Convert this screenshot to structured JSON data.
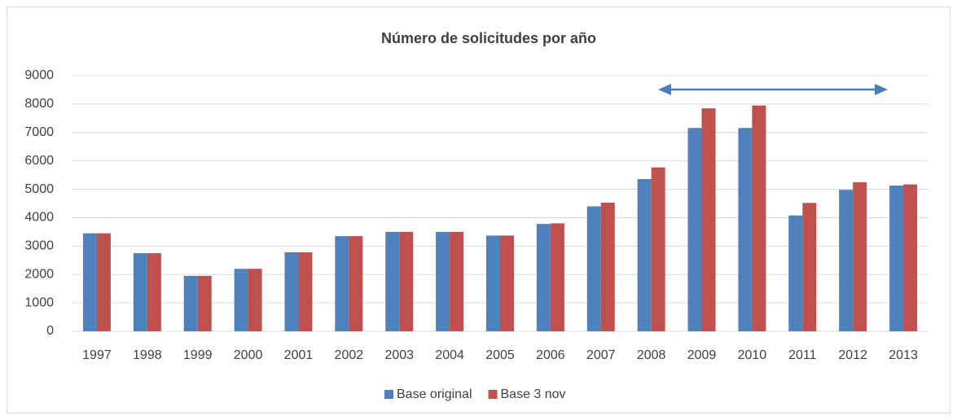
{
  "chart_data": {
    "type": "bar",
    "title": "Número de solicitudes por año",
    "categories": [
      "1997",
      "1998",
      "1999",
      "2000",
      "2001",
      "2002",
      "2003",
      "2004",
      "2005",
      "2006",
      "2007",
      "2008",
      "2009",
      "2010",
      "2011",
      "2012",
      "2013"
    ],
    "series": [
      {
        "name": "Base original",
        "color": "#4f81bd",
        "values": [
          3450,
          2750,
          1950,
          2200,
          2780,
          3350,
          3500,
          3500,
          3370,
          3780,
          4400,
          5360,
          7160,
          7160,
          4080,
          4980,
          5130
        ]
      },
      {
        "name": "Base 3 nov",
        "color": "#c0504d",
        "values": [
          3450,
          2750,
          1950,
          2200,
          2780,
          3350,
          3500,
          3500,
          3370,
          3800,
          4530,
          5770,
          7850,
          7950,
          4520,
          5250,
          5170
        ]
      }
    ],
    "ylim": [
      0,
      9000
    ],
    "yticks": [
      0,
      1000,
      2000,
      3000,
      4000,
      5000,
      6000,
      7000,
      8000,
      9000
    ],
    "grid": true,
    "legend": "bottom"
  }
}
